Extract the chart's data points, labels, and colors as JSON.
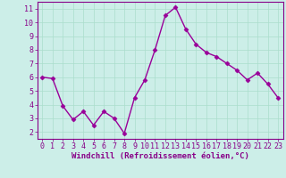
{
  "x": [
    0,
    1,
    2,
    3,
    4,
    5,
    6,
    7,
    8,
    9,
    10,
    11,
    12,
    13,
    14,
    15,
    16,
    17,
    18,
    19,
    20,
    21,
    22,
    23
  ],
  "y": [
    6.0,
    5.9,
    3.9,
    2.9,
    3.5,
    2.5,
    3.5,
    3.0,
    1.9,
    4.5,
    5.8,
    8.0,
    10.5,
    11.1,
    9.5,
    8.4,
    7.8,
    7.5,
    7.0,
    6.5,
    5.8,
    6.3,
    5.5,
    4.5
  ],
  "line_color": "#990099",
  "marker": "D",
  "marker_size": 2.5,
  "line_width": 1.0,
  "xlabel": "Windchill (Refroidissement éolien,°C)",
  "xlabel_fontsize": 6.5,
  "xlim": [
    -0.5,
    23.5
  ],
  "ylim": [
    1.5,
    11.5
  ],
  "yticks": [
    2,
    3,
    4,
    5,
    6,
    7,
    8,
    9,
    10,
    11
  ],
  "xticks": [
    0,
    1,
    2,
    3,
    4,
    5,
    6,
    7,
    8,
    9,
    10,
    11,
    12,
    13,
    14,
    15,
    16,
    17,
    18,
    19,
    20,
    21,
    22,
    23
  ],
  "grid_color": "#aaddcc",
  "bg_color": "#cceee8",
  "tick_color": "#880088",
  "tick_fontsize": 6.0,
  "xlabel_color": "#880088",
  "spine_color": "#880088"
}
